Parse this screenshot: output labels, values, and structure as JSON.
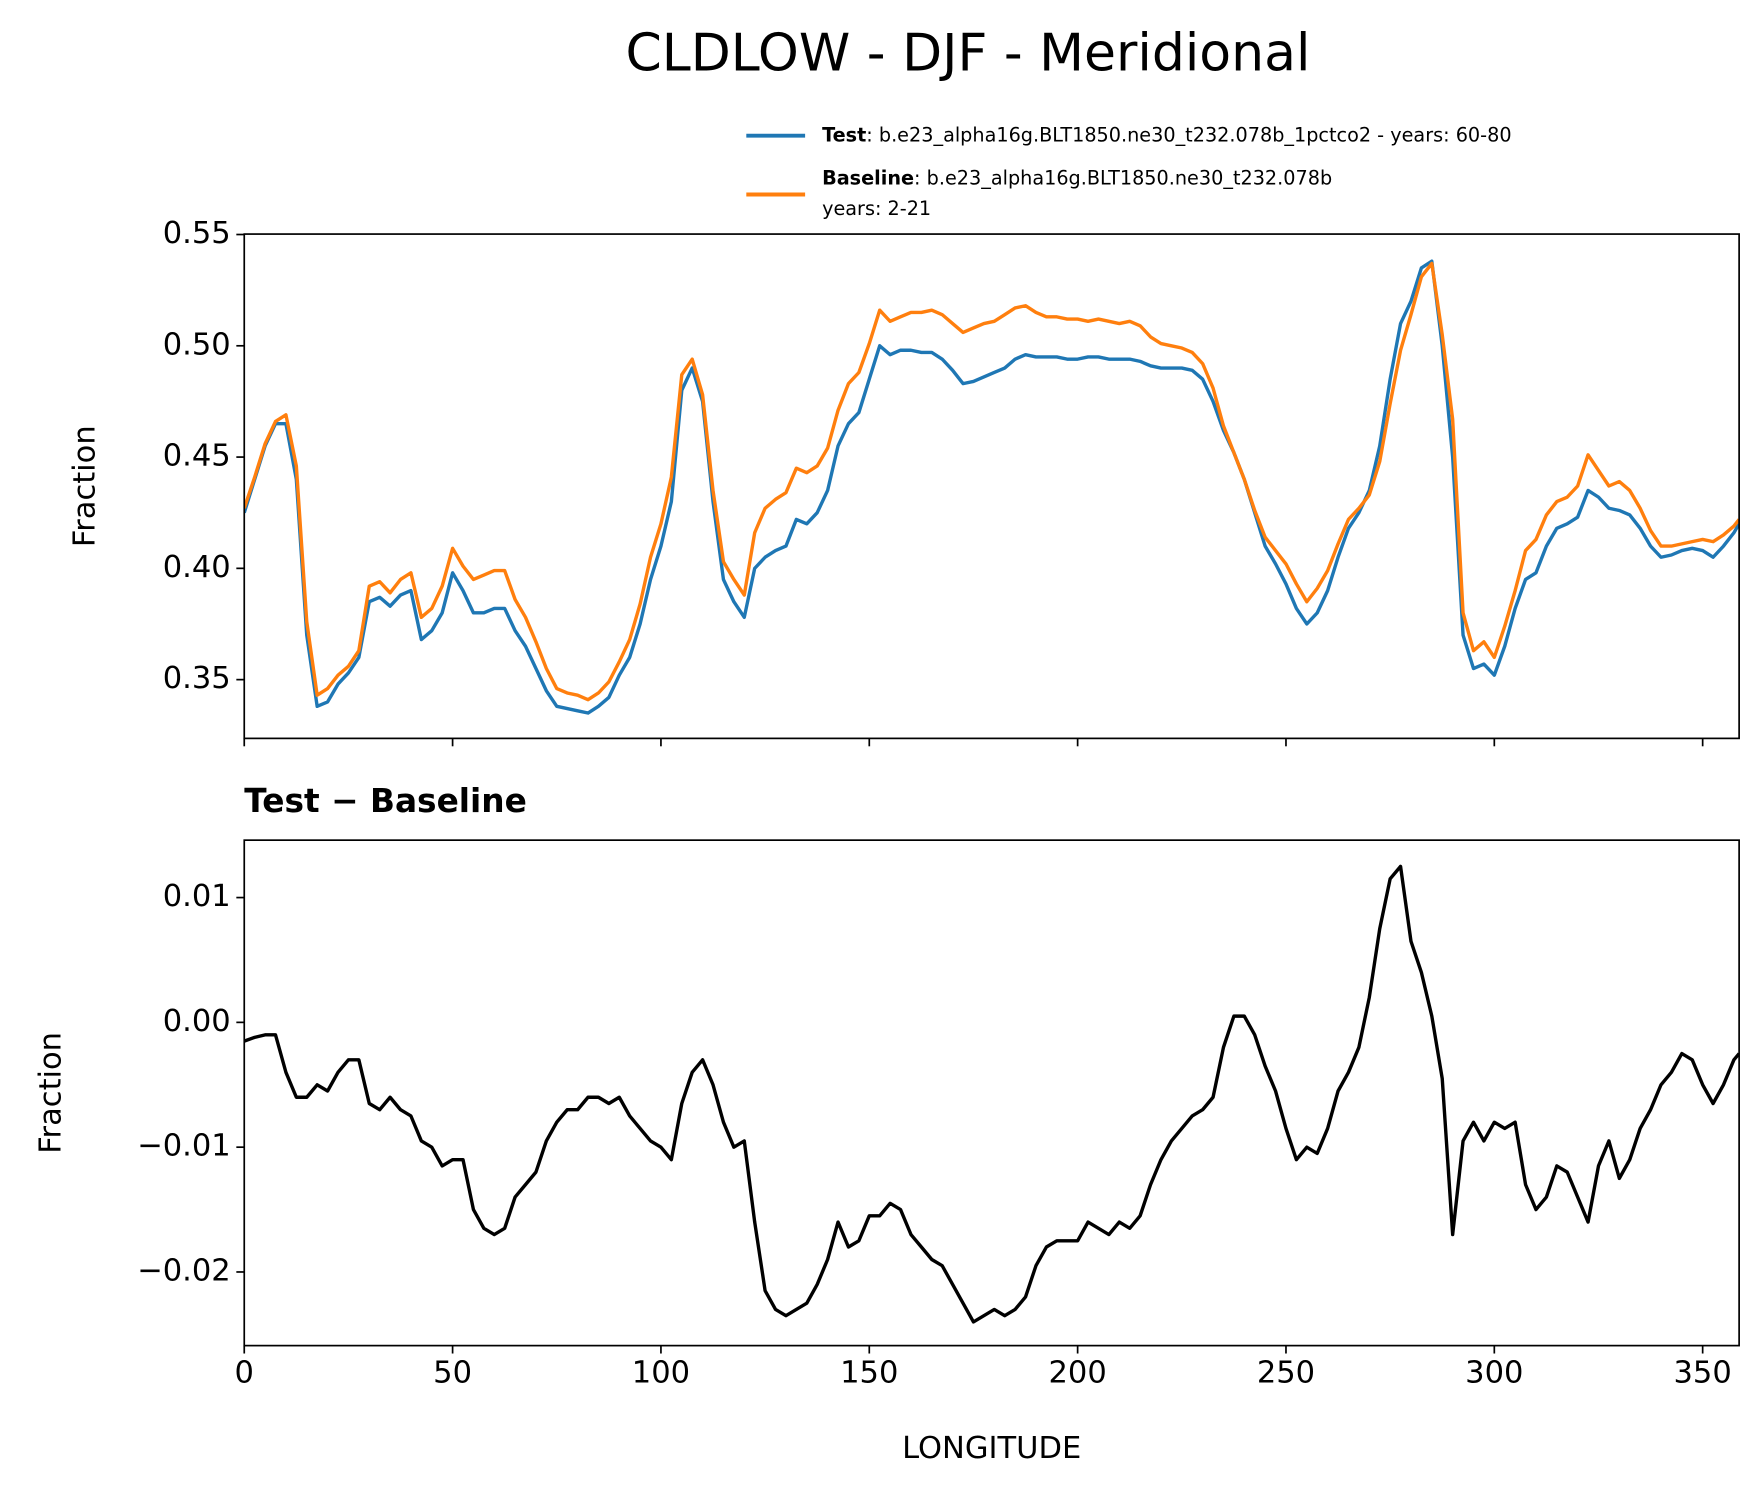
{
  "title": "CLDLOW - DJF - Meridional",
  "chart_data": [
    {
      "type": "line",
      "ylabel": "Fraction",
      "xlim": [
        0,
        358.75
      ],
      "ylim": [
        0.3236,
        0.5502
      ],
      "xticks": [
        0,
        50,
        100,
        150,
        200,
        250,
        300,
        350
      ],
      "xticklabels": false,
      "yticks": [
        0.35,
        {
          "value": 0.4,
          "label": "0.40"
        },
        0.45,
        {
          "value": 0.5,
          "label": "0.50"
        },
        0.55
      ],
      "x": [
        0,
        2.5,
        5,
        7.5,
        10,
        12.5,
        15,
        17.5,
        20,
        22.5,
        25,
        27.5,
        30,
        32.5,
        35,
        37.5,
        40,
        42.5,
        45,
        47.5,
        50,
        52.5,
        55,
        57.5,
        60,
        62.5,
        65,
        67.5,
        70,
        72.5,
        75,
        77.5,
        80,
        82.5,
        85,
        87.5,
        90,
        92.5,
        95,
        97.5,
        100,
        102.5,
        105,
        107.5,
        110,
        112.5,
        115,
        117.5,
        120,
        122.5,
        125,
        127.5,
        130,
        132.5,
        135,
        137.5,
        140,
        142.5,
        145,
        147.5,
        150,
        152.5,
        155,
        157.5,
        160,
        162.5,
        165,
        167.5,
        170,
        172.5,
        175,
        177.5,
        180,
        182.5,
        185,
        187.5,
        190,
        192.5,
        195,
        197.5,
        200,
        202.5,
        205,
        207.5,
        210,
        212.5,
        215,
        217.5,
        220,
        222.5,
        225,
        227.5,
        230,
        232.5,
        235,
        237.5,
        240,
        242.5,
        245,
        247.5,
        250,
        252.5,
        255,
        257.5,
        260,
        262.5,
        265,
        267.5,
        270,
        272.5,
        275,
        277.5,
        280,
        282.5,
        285,
        287.5,
        290,
        292.5,
        295,
        297.5,
        300,
        302.5,
        305,
        307.5,
        310,
        312.5,
        315,
        317.5,
        320,
        322.5,
        325,
        327.5,
        330,
        332.5,
        335,
        337.5,
        340,
        342.5,
        345,
        347.5,
        350,
        352.5,
        355,
        357.5,
        358.75
      ],
      "series": [
        {
          "name": "Test",
          "description": [
            ": b.e23_alpha16g.BLT1850.ne30_t232.078b_1pctco2 - years: 60-80"
          ],
          "color": "#1f77b4",
          "values": [
            0.425,
            0.44,
            0.455,
            0.465,
            0.465,
            0.44,
            0.37,
            0.338,
            0.34,
            0.348,
            0.353,
            0.36,
            0.385,
            0.387,
            0.383,
            0.388,
            0.39,
            0.368,
            0.372,
            0.38,
            0.398,
            0.39,
            0.38,
            0.38,
            0.382,
            0.382,
            0.372,
            0.365,
            0.355,
            0.345,
            0.338,
            0.337,
            0.336,
            0.335,
            0.338,
            0.342,
            0.352,
            0.36,
            0.375,
            0.395,
            0.41,
            0.43,
            0.48,
            0.49,
            0.475,
            0.43,
            0.395,
            0.385,
            0.378,
            0.4,
            0.405,
            0.408,
            0.41,
            0.422,
            0.42,
            0.425,
            0.435,
            0.455,
            0.465,
            0.47,
            0.485,
            0.5,
            0.496,
            0.498,
            0.498,
            0.497,
            0.497,
            0.494,
            0.489,
            0.483,
            0.484,
            0.486,
            0.488,
            0.49,
            0.494,
            0.496,
            0.495,
            0.495,
            0.495,
            0.494,
            0.494,
            0.495,
            0.495,
            0.494,
            0.494,
            0.494,
            0.493,
            0.491,
            0.49,
            0.49,
            0.49,
            0.489,
            0.485,
            0.475,
            0.462,
            0.452,
            0.44,
            0.425,
            0.41,
            0.402,
            0.393,
            0.382,
            0.375,
            0.38,
            0.39,
            0.405,
            0.418,
            0.425,
            0.435,
            0.455,
            0.485,
            0.51,
            0.52,
            0.535,
            0.538,
            0.5,
            0.45,
            0.37,
            0.355,
            0.357,
            0.352,
            0.365,
            0.382,
            0.395,
            0.398,
            0.41,
            0.418,
            0.42,
            0.423,
            0.435,
            0.432,
            0.427,
            0.426,
            0.424,
            0.418,
            0.41,
            0.405,
            0.406,
            0.408,
            0.409,
            0.408,
            0.405,
            0.41,
            0.416,
            0.42
          ]
        },
        {
          "name": "Baseline",
          "description": [
            ": b.e23_alpha16g.BLT1850.ne30_t232.078b",
            "years: 2-21"
          ],
          "color": "#ff7f0e",
          "values": [
            0.427,
            0.441,
            0.456,
            0.466,
            0.469,
            0.446,
            0.376,
            0.343,
            0.346,
            0.352,
            0.356,
            0.363,
            0.392,
            0.394,
            0.389,
            0.395,
            0.398,
            0.378,
            0.382,
            0.392,
            0.409,
            0.401,
            0.395,
            0.397,
            0.399,
            0.399,
            0.386,
            0.378,
            0.367,
            0.355,
            0.346,
            0.344,
            0.343,
            0.341,
            0.344,
            0.349,
            0.358,
            0.368,
            0.384,
            0.405,
            0.42,
            0.441,
            0.487,
            0.494,
            0.478,
            0.435,
            0.403,
            0.395,
            0.388,
            0.416,
            0.427,
            0.431,
            0.434,
            0.445,
            0.443,
            0.446,
            0.454,
            0.471,
            0.483,
            0.488,
            0.501,
            0.516,
            0.511,
            0.513,
            0.515,
            0.515,
            0.516,
            0.514,
            0.51,
            0.506,
            0.508,
            0.51,
            0.511,
            0.514,
            0.517,
            0.518,
            0.515,
            0.513,
            0.513,
            0.512,
            0.512,
            0.511,
            0.512,
            0.511,
            0.51,
            0.511,
            0.509,
            0.504,
            0.501,
            0.5,
            0.499,
            0.497,
            0.492,
            0.481,
            0.464,
            0.452,
            0.44,
            0.426,
            0.414,
            0.408,
            0.402,
            0.393,
            0.385,
            0.391,
            0.399,
            0.411,
            0.422,
            0.427,
            0.433,
            0.448,
            0.474,
            0.498,
            0.514,
            0.531,
            0.537,
            0.505,
            0.467,
            0.38,
            0.363,
            0.367,
            0.36,
            0.374,
            0.39,
            0.408,
            0.413,
            0.424,
            0.43,
            0.432,
            0.437,
            0.451,
            0.444,
            0.437,
            0.439,
            0.435,
            0.427,
            0.417,
            0.41,
            0.41,
            0.411,
            0.412,
            0.413,
            0.412,
            0.415,
            0.419,
            0.422
          ]
        }
      ]
    },
    {
      "type": "line",
      "title": "Test − Baseline",
      "xlabel": "LONGITUDE",
      "ylabel": "Fraction",
      "xlim": [
        0,
        358.75
      ],
      "ylim": [
        -0.0259,
        0.0146
      ],
      "xticks": [
        0,
        50,
        100,
        150,
        200,
        250,
        300,
        350
      ],
      "yticks": [
        {
          "value": -0.02,
          "label": "−0.02"
        },
        {
          "value": -0.01,
          "label": "−0.01"
        },
        {
          "value": 0,
          "label": "0.00"
        },
        0.01
      ],
      "x": [
        0,
        2.5,
        5,
        7.5,
        10,
        12.5,
        15,
        17.5,
        20,
        22.5,
        25,
        27.5,
        30,
        32.5,
        35,
        37.5,
        40,
        42.5,
        45,
        47.5,
        50,
        52.5,
        55,
        57.5,
        60,
        62.5,
        65,
        67.5,
        70,
        72.5,
        75,
        77.5,
        80,
        82.5,
        85,
        87.5,
        90,
        92.5,
        95,
        97.5,
        100,
        102.5,
        105,
        107.5,
        110,
        112.5,
        115,
        117.5,
        120,
        122.5,
        125,
        127.5,
        130,
        132.5,
        135,
        137.5,
        140,
        142.5,
        145,
        147.5,
        150,
        152.5,
        155,
        157.5,
        160,
        162.5,
        165,
        167.5,
        170,
        172.5,
        175,
        177.5,
        180,
        182.5,
        185,
        187.5,
        190,
        192.5,
        195,
        197.5,
        200,
        202.5,
        205,
        207.5,
        210,
        212.5,
        215,
        217.5,
        220,
        222.5,
        225,
        227.5,
        230,
        232.5,
        235,
        237.5,
        240,
        242.5,
        245,
        247.5,
        250,
        252.5,
        255,
        257.5,
        260,
        262.5,
        265,
        267.5,
        270,
        272.5,
        275,
        277.5,
        280,
        282.5,
        285,
        287.5,
        290,
        292.5,
        295,
        297.5,
        300,
        302.5,
        305,
        307.5,
        310,
        312.5,
        315,
        317.5,
        320,
        322.5,
        325,
        327.5,
        330,
        332.5,
        335,
        337.5,
        340,
        342.5,
        345,
        347.5,
        350,
        352.5,
        355,
        357.5,
        358.75
      ],
      "series": [
        {
          "color": "#000000",
          "values": [
            -0.0015,
            -0.0012,
            -0.001,
            -0.001,
            -0.004,
            -0.006,
            -0.006,
            -0.005,
            -0.0055,
            -0.004,
            -0.003,
            -0.003,
            -0.0065,
            -0.007,
            -0.006,
            -0.007,
            -0.0075,
            -0.0095,
            -0.01,
            -0.0115,
            -0.011,
            -0.011,
            -0.015,
            -0.0165,
            -0.017,
            -0.0165,
            -0.014,
            -0.013,
            -0.012,
            -0.0095,
            -0.008,
            -0.007,
            -0.007,
            -0.006,
            -0.006,
            -0.0065,
            -0.006,
            -0.0075,
            -0.0085,
            -0.0095,
            -0.01,
            -0.011,
            -0.0065,
            -0.004,
            -0.003,
            -0.005,
            -0.008,
            -0.01,
            -0.0095,
            -0.016,
            -0.0215,
            -0.023,
            -0.0235,
            -0.023,
            -0.0225,
            -0.021,
            -0.019,
            -0.016,
            -0.018,
            -0.0175,
            -0.0155,
            -0.0155,
            -0.0145,
            -0.015,
            -0.017,
            -0.018,
            -0.019,
            -0.0195,
            -0.021,
            -0.0225,
            -0.024,
            -0.0235,
            -0.023,
            -0.0235,
            -0.023,
            -0.022,
            -0.0195,
            -0.018,
            -0.0175,
            -0.0175,
            -0.0175,
            -0.016,
            -0.0165,
            -0.017,
            -0.016,
            -0.0165,
            -0.0155,
            -0.013,
            -0.011,
            -0.0095,
            -0.0085,
            -0.0075,
            -0.007,
            -0.006,
            -0.002,
            0.0005,
            0.0005,
            -0.001,
            -0.0035,
            -0.0055,
            -0.0085,
            -0.011,
            -0.01,
            -0.0105,
            -0.0085,
            -0.0055,
            -0.004,
            -0.002,
            0.002,
            0.0075,
            0.0115,
            0.0125,
            0.0065,
            0.004,
            0.0005,
            -0.0045,
            -0.017,
            -0.0095,
            -0.008,
            -0.0095,
            -0.008,
            -0.0085,
            -0.008,
            -0.013,
            -0.015,
            -0.014,
            -0.0115,
            -0.012,
            -0.014,
            -0.016,
            -0.0115,
            -0.0095,
            -0.0125,
            -0.011,
            -0.0085,
            -0.007,
            -0.005,
            -0.004,
            -0.0025,
            -0.003,
            -0.005,
            -0.0065,
            -0.005,
            -0.003,
            -0.0025
          ]
        }
      ]
    }
  ]
}
